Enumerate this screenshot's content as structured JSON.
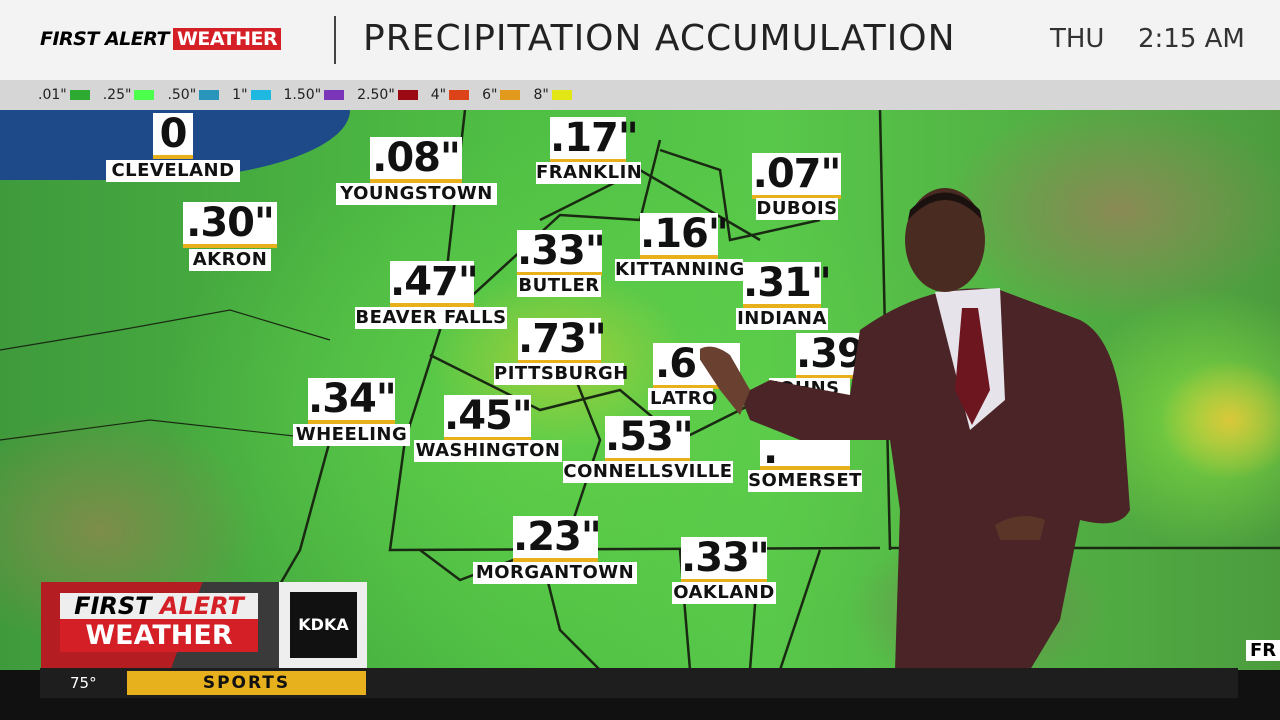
{
  "header": {
    "logo_text_1": "FIRST ALERT",
    "logo_text_2": "WEATHER",
    "title": "PRECIPITATION ACCUMULATION",
    "day": "THU",
    "time": "2:15 AM"
  },
  "legend": [
    {
      "label": ".01\"",
      "color": "#2eaa33"
    },
    {
      "label": ".25\"",
      "color": "#4cff4c"
    },
    {
      "label": ".50\"",
      "color": "#2a95bb"
    },
    {
      "label": "1\"",
      "color": "#1fb8e0"
    },
    {
      "label": "1.50\"",
      "color": "#7a35b8"
    },
    {
      "label": "2.50\"",
      "color": "#9b0a12"
    },
    {
      "label": "4\"",
      "color": "#dc4318"
    },
    {
      "label": "6\"",
      "color": "#e29a1c"
    },
    {
      "label": "8\"",
      "color": "#e2e614"
    }
  ],
  "locations": [
    {
      "name": "CLEVELAND",
      "value": "0"
    },
    {
      "name": "YOUNGSTOWN",
      "value": ".08\""
    },
    {
      "name": "FRANKLIN",
      "value": ".17\""
    },
    {
      "name": "DUBOIS",
      "value": ".07\""
    },
    {
      "name": "AKRON",
      "value": ".30\""
    },
    {
      "name": "BUTLER",
      "value": ".33\""
    },
    {
      "name": "KITTANNING",
      "value": ".16\""
    },
    {
      "name": "BEAVER FALLS",
      "value": ".47\""
    },
    {
      "name": "INDIANA",
      "value": ".31\""
    },
    {
      "name": "PITTSBURGH",
      "value": ".73\""
    },
    {
      "name": "LATRO",
      "value": ".6"
    },
    {
      "name": "JOHNS",
      "value": ".39"
    },
    {
      "name": "WHEELING",
      "value": ".34\""
    },
    {
      "name": "WASHINGTON",
      "value": ".45\""
    },
    {
      "name": "CONNELLSVILLE",
      "value": ".53\""
    },
    {
      "name": "SOMERSET",
      "value": "."
    },
    {
      "name": "MORGANTOWN",
      "value": ".23\""
    },
    {
      "name": "OAKLAND",
      "value": ".33\""
    }
  ],
  "edge_text": "FR",
  "bug": {
    "line1a": "FIRST",
    "line1b": "ALERT",
    "line2": "WEATHER",
    "station": "KDKA"
  },
  "ticker": {
    "temperature": "75°",
    "segment": "SPORTS"
  }
}
